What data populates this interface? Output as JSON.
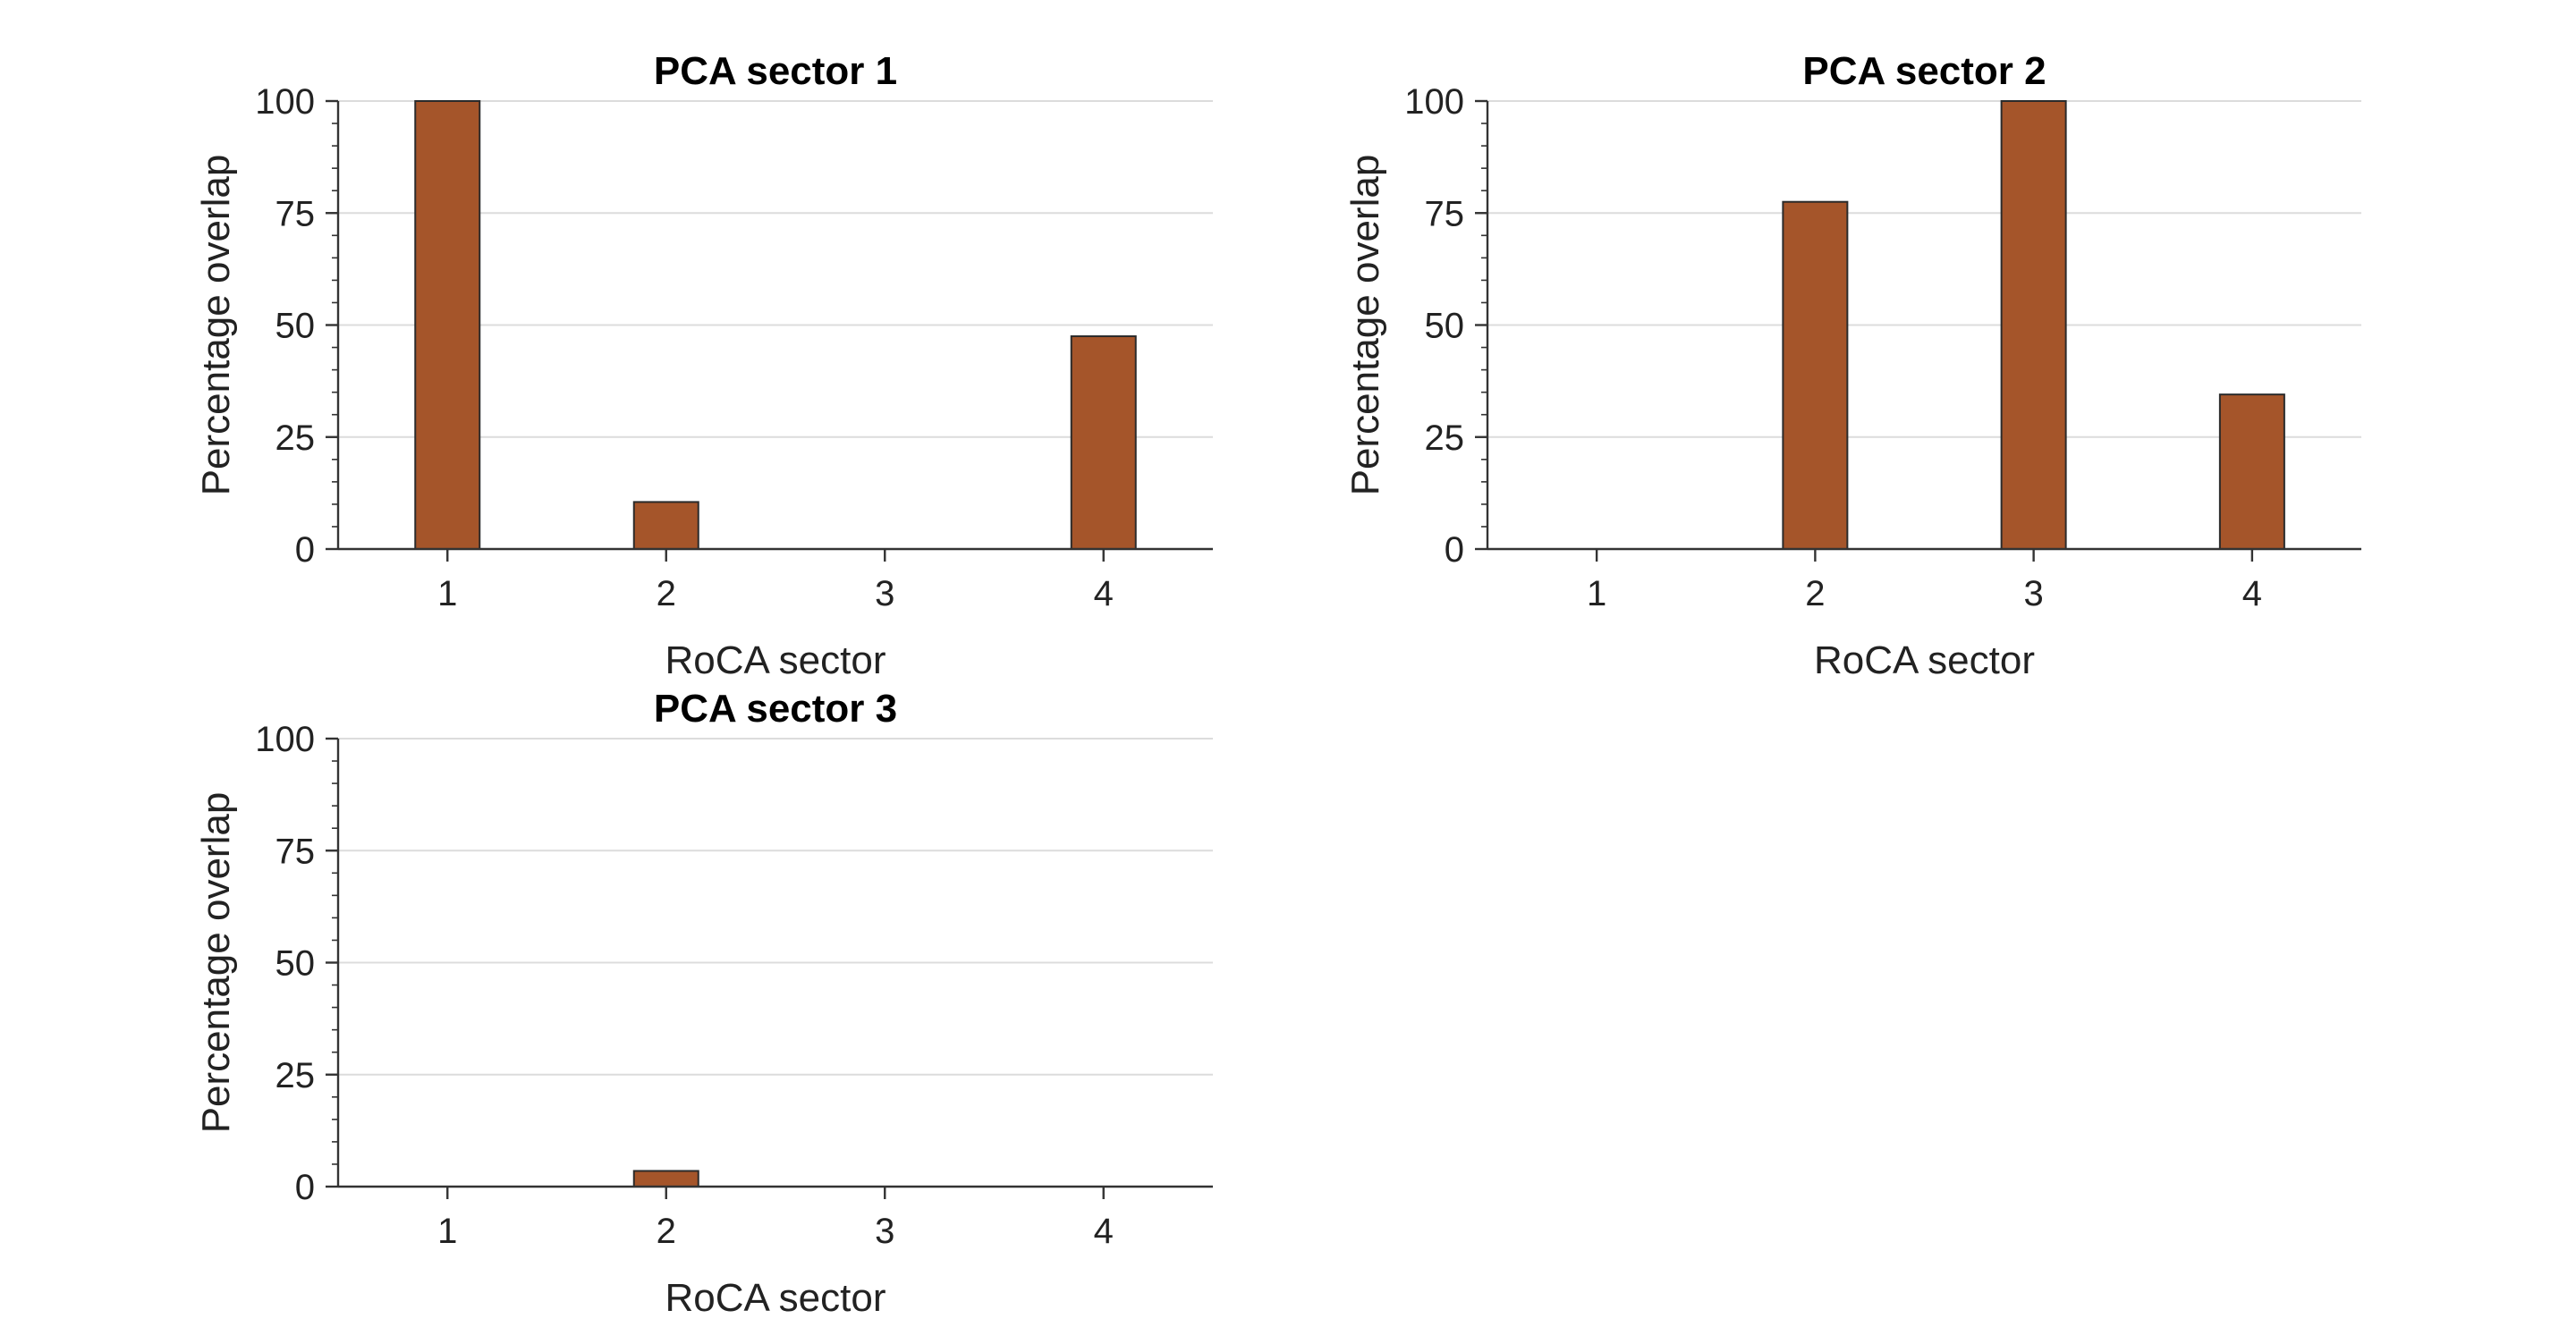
{
  "colors": {
    "bar": "#a5552a"
  },
  "chart_data": [
    {
      "type": "bar",
      "title": "PCA sector 1",
      "xlabel": "RoCA sector",
      "ylabel": "Percentage overlap",
      "categories": [
        "1",
        "2",
        "3",
        "4"
      ],
      "values": [
        100,
        10.5,
        0,
        47.5
      ],
      "ylim": [
        0,
        100
      ],
      "yticks": [
        "0",
        "25",
        "50",
        "75",
        "100"
      ],
      "grid": "horizontal"
    },
    {
      "type": "bar",
      "title": "PCA sector 2",
      "xlabel": "RoCA sector",
      "ylabel": "Percentage overlap",
      "categories": [
        "1",
        "2",
        "3",
        "4"
      ],
      "values": [
        0,
        77.5,
        100,
        34.5
      ],
      "ylim": [
        0,
        100
      ],
      "yticks": [
        "0",
        "25",
        "50",
        "75",
        "100"
      ],
      "grid": "horizontal"
    },
    {
      "type": "bar",
      "title": "PCA sector 3",
      "xlabel": "RoCA sector",
      "ylabel": "Percentage overlap",
      "categories": [
        "1",
        "2",
        "3",
        "4"
      ],
      "values": [
        0,
        3.5,
        0,
        0
      ],
      "ylim": [
        0,
        100
      ],
      "yticks": [
        "0",
        "25",
        "50",
        "75",
        "100"
      ],
      "grid": "horizontal"
    }
  ]
}
